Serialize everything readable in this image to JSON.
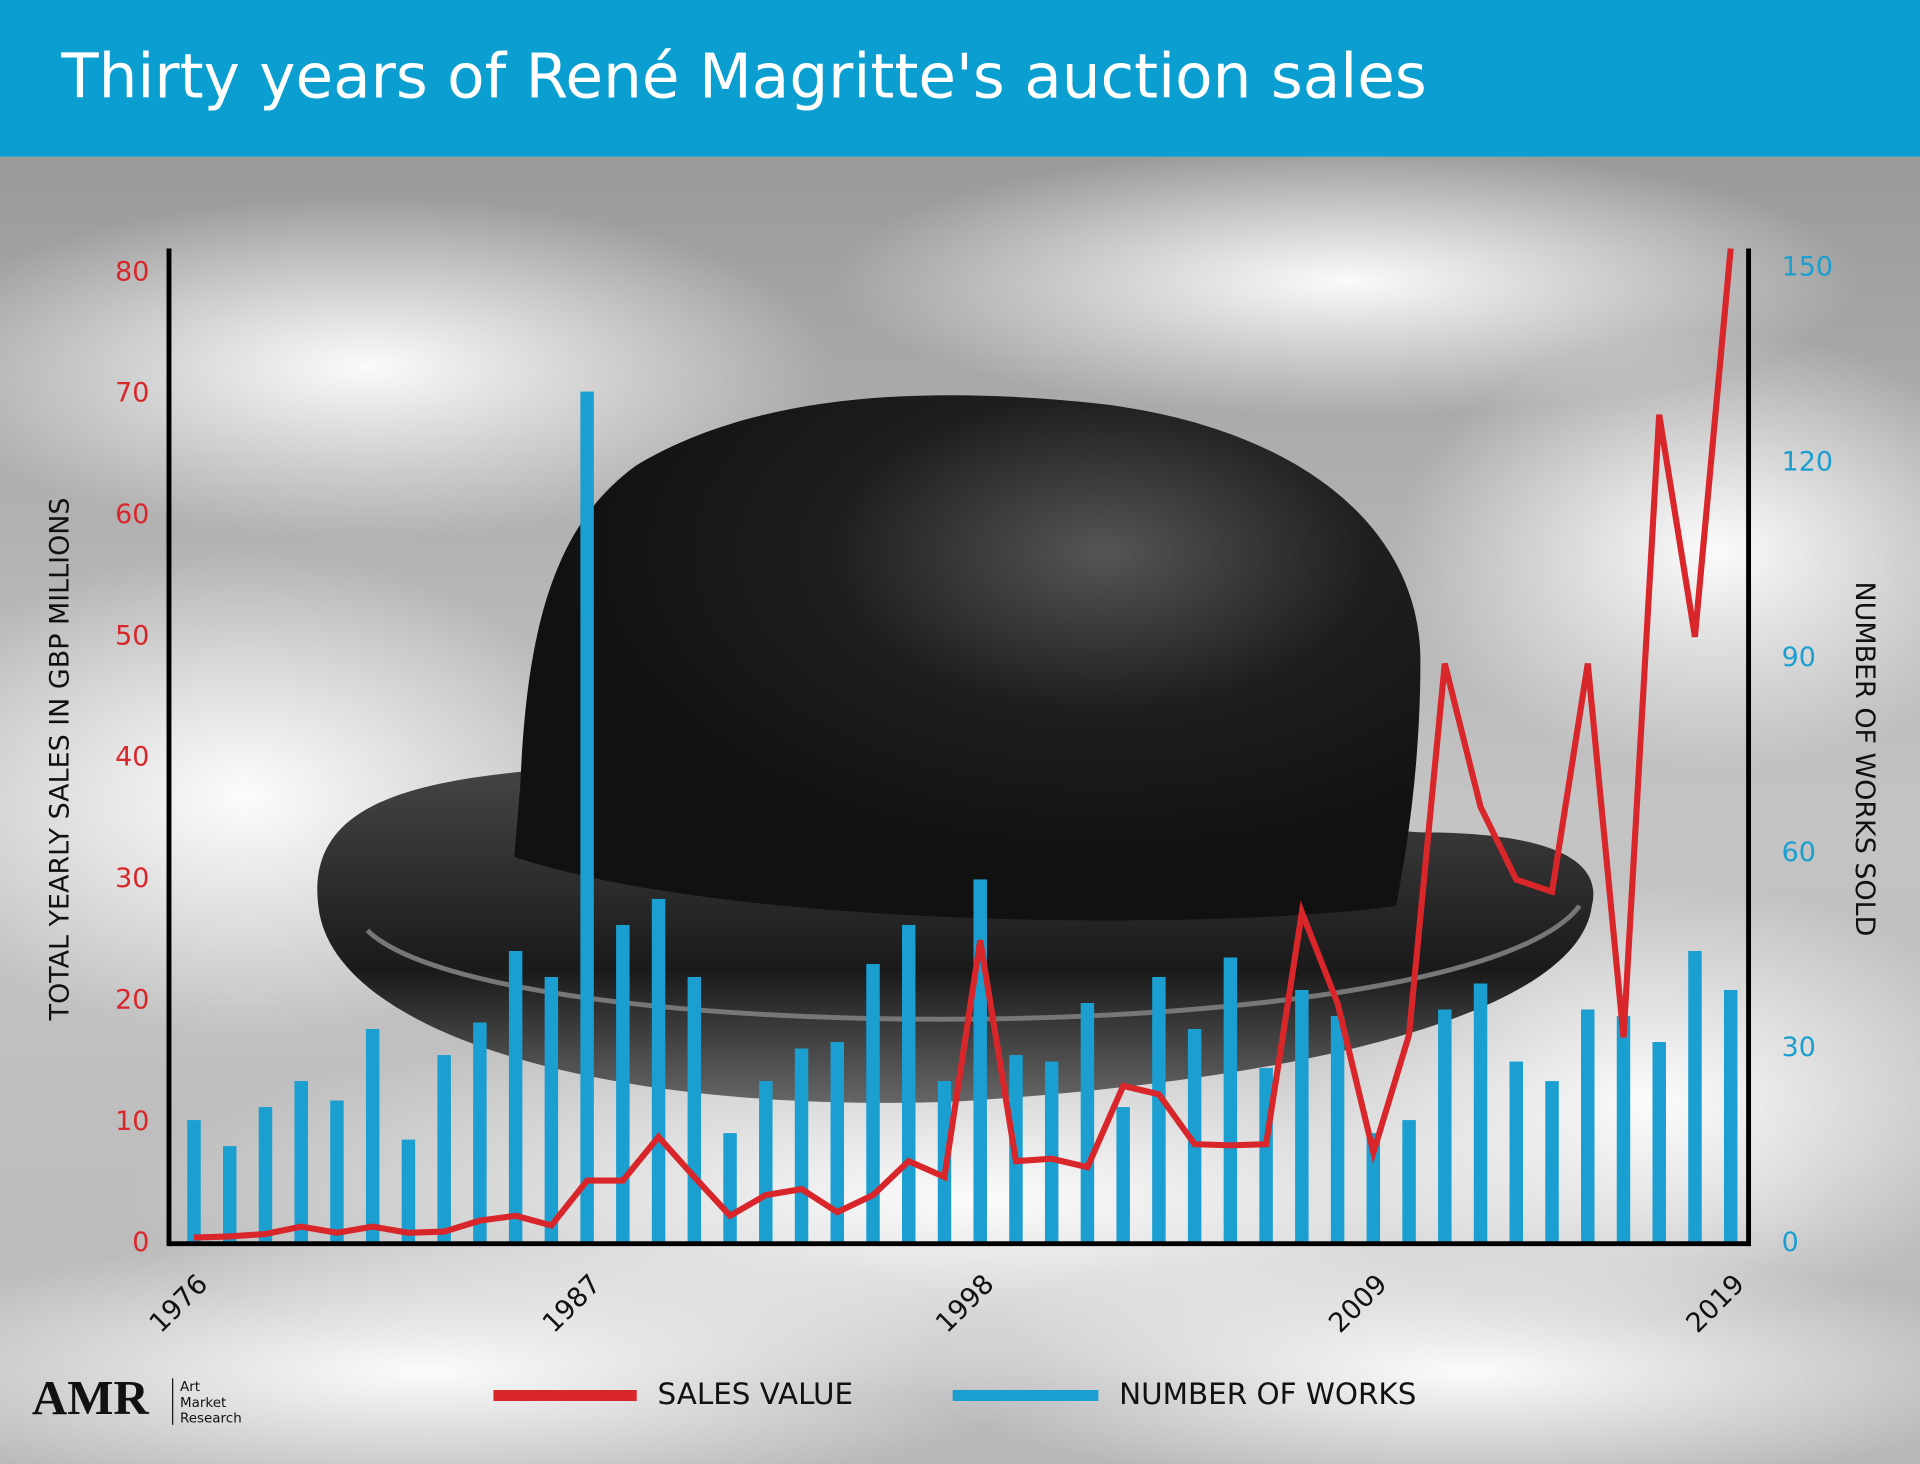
{
  "chart_data": {
    "type": "bar",
    "title": "Thirty years of René Magritte's auction sales",
    "ylabel": "TOTAL YEARLY SALES IN GBP MILLIONS",
    "y2label": "NUMBER OF WORKS SOLD",
    "x": [
      1976,
      1977,
      1978,
      1979,
      1980,
      1981,
      1982,
      1983,
      1984,
      1985,
      1986,
      1987,
      1988,
      1989,
      1990,
      1991,
      1992,
      1993,
      1994,
      1995,
      1996,
      1997,
      1998,
      1999,
      2000,
      2001,
      2002,
      2003,
      2004,
      2005,
      2006,
      2007,
      2008,
      2009,
      2010,
      2011,
      2012,
      2013,
      2014,
      2015,
      2016,
      2017,
      2018,
      2019
    ],
    "xlim": [
      1975.3,
      2019.5
    ],
    "xticks": [
      1976,
      1987,
      1998,
      2009,
      2019
    ],
    "ylim": [
      0,
      82
    ],
    "yticks": [
      0,
      10,
      20,
      30,
      40,
      50,
      60,
      70,
      80
    ],
    "y2lim": [
      0,
      153
    ],
    "y2ticks": [
      0,
      30,
      60,
      90,
      120,
      150
    ],
    "series": [
      {
        "name": "NUMBER OF WORKS",
        "type": "bar",
        "axis": "y2",
        "color": "#1a9fd0",
        "values": [
          19,
          15,
          21,
          25,
          22,
          33,
          16,
          29,
          34,
          45,
          41,
          131,
          49,
          53,
          41,
          17,
          25,
          30,
          31,
          43,
          49,
          25,
          56,
          29,
          28,
          37,
          21,
          41,
          33,
          44,
          27,
          39,
          35,
          17,
          19,
          36,
          40,
          28,
          25,
          36,
          35,
          31,
          45,
          39
        ]
      },
      {
        "name": "SALES VALUE",
        "type": "line",
        "axis": "y",
        "color": "#d8262a",
        "values": [
          0.5,
          0.6,
          0.8,
          1.4,
          0.9,
          1.4,
          0.9,
          1.0,
          1.9,
          2.3,
          1.5,
          5.2,
          5.2,
          8.8,
          5.5,
          2.3,
          4.0,
          4.5,
          2.6,
          4.0,
          6.8,
          5.5,
          25,
          6.8,
          7.0,
          6.3,
          13,
          12.3,
          8.2,
          8.1,
          8.2,
          27.3,
          19.8,
          7.5,
          17.2,
          47.8,
          36,
          30,
          29,
          47.8,
          17,
          68.3,
          50,
          82
        ]
      }
    ],
    "legend": "bottom",
    "logo": {
      "mark": "AMR",
      "lines": [
        "Art",
        "Market",
        "Research"
      ]
    }
  }
}
